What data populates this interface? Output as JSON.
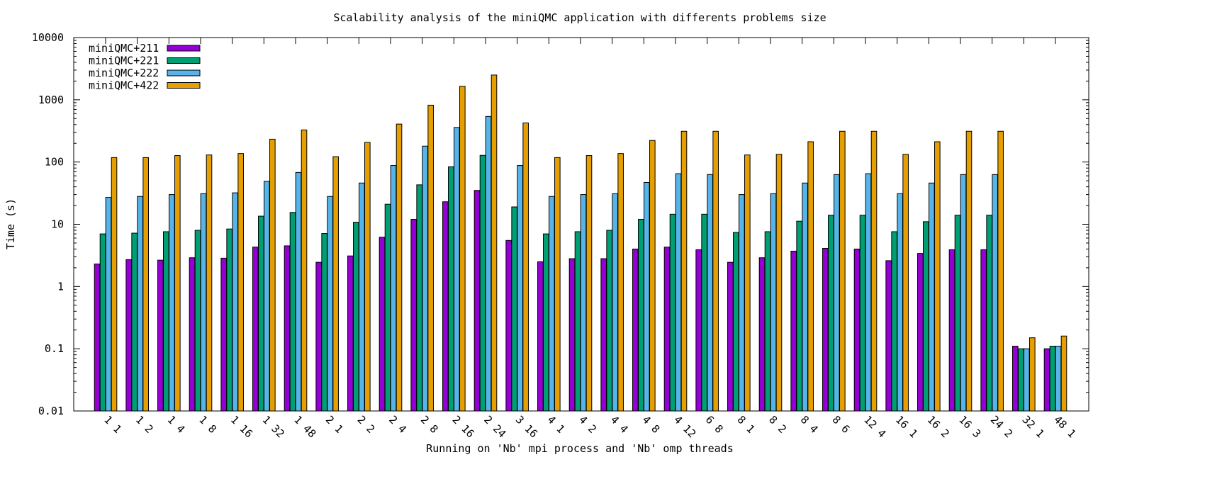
{
  "chart_data": {
    "type": "bar",
    "title": "Scalability analysis of the miniQMC application with differents problems size",
    "xlabel": "Running on 'Nb' mpi process and 'Nb' omp threads",
    "ylabel": "Time (s)",
    "yscale": "log",
    "ylim": [
      0.01,
      10000
    ],
    "yticks": [
      0.01,
      0.1,
      1,
      10,
      100,
      1000,
      10000
    ],
    "ytick_labels": [
      "0.01",
      "0.1",
      "1",
      "10",
      "100",
      "1000",
      "10000"
    ],
    "grid": false,
    "legend_position": "top-left",
    "categories": [
      "1 1",
      "1 2",
      "1 4",
      "1 8",
      "1 16",
      "1 32",
      "1 48",
      "2 1",
      "2 2",
      "2 4",
      "2 8",
      "2 16",
      "2 24",
      "3 16",
      "4 1",
      "4 2",
      "4 4",
      "4 8",
      "4 12",
      "6 8",
      "8 1",
      "8 2",
      "8 4",
      "8 6",
      "12 4",
      "16 1",
      "16 2",
      "16 3",
      "24 2",
      "32 1",
      "48 1"
    ],
    "series": [
      {
        "name": "miniQMC+211",
        "color": "#9400d3",
        "values": [
          2.3,
          2.7,
          2.65,
          2.9,
          2.85,
          4.3,
          4.5,
          2.45,
          3.1,
          6.2,
          12,
          23,
          35,
          5.5,
          2.5,
          2.8,
          2.8,
          4,
          4.3,
          3.9,
          2.45,
          2.9,
          3.7,
          4.1,
          4,
          2.6,
          3.4,
          3.9,
          3.9,
          0.11,
          0.1
        ]
      },
      {
        "name": "miniQMC+221",
        "color": "#009e73",
        "values": [
          7,
          7.2,
          7.6,
          8,
          8.4,
          13.5,
          15.5,
          7.1,
          10.8,
          21,
          43,
          84,
          128,
          19,
          7,
          7.6,
          8,
          12,
          14.5,
          14.5,
          7.4,
          7.6,
          11.2,
          14,
          14,
          7.6,
          11,
          14,
          14,
          0.1,
          0.11
        ]
      },
      {
        "name": "miniQMC+222",
        "color": "#56b4e9",
        "values": [
          27,
          28,
          30,
          31,
          32,
          49,
          68,
          28,
          46,
          88,
          180,
          360,
          540,
          88,
          28,
          30,
          31,
          47,
          65,
          63,
          30,
          31,
          46,
          63,
          65,
          31,
          46,
          63,
          63,
          0.1,
          0.11
        ]
      },
      {
        "name": "miniQMC+422",
        "color": "#e69f00",
        "values": [
          118,
          118,
          127,
          130,
          137,
          233,
          328,
          122,
          207,
          407,
          820,
          1650,
          2500,
          425,
          118,
          127,
          137,
          222,
          312,
          312,
          130,
          133,
          212,
          312,
          312,
          133,
          212,
          312,
          312,
          0.15,
          0.16
        ]
      }
    ]
  }
}
